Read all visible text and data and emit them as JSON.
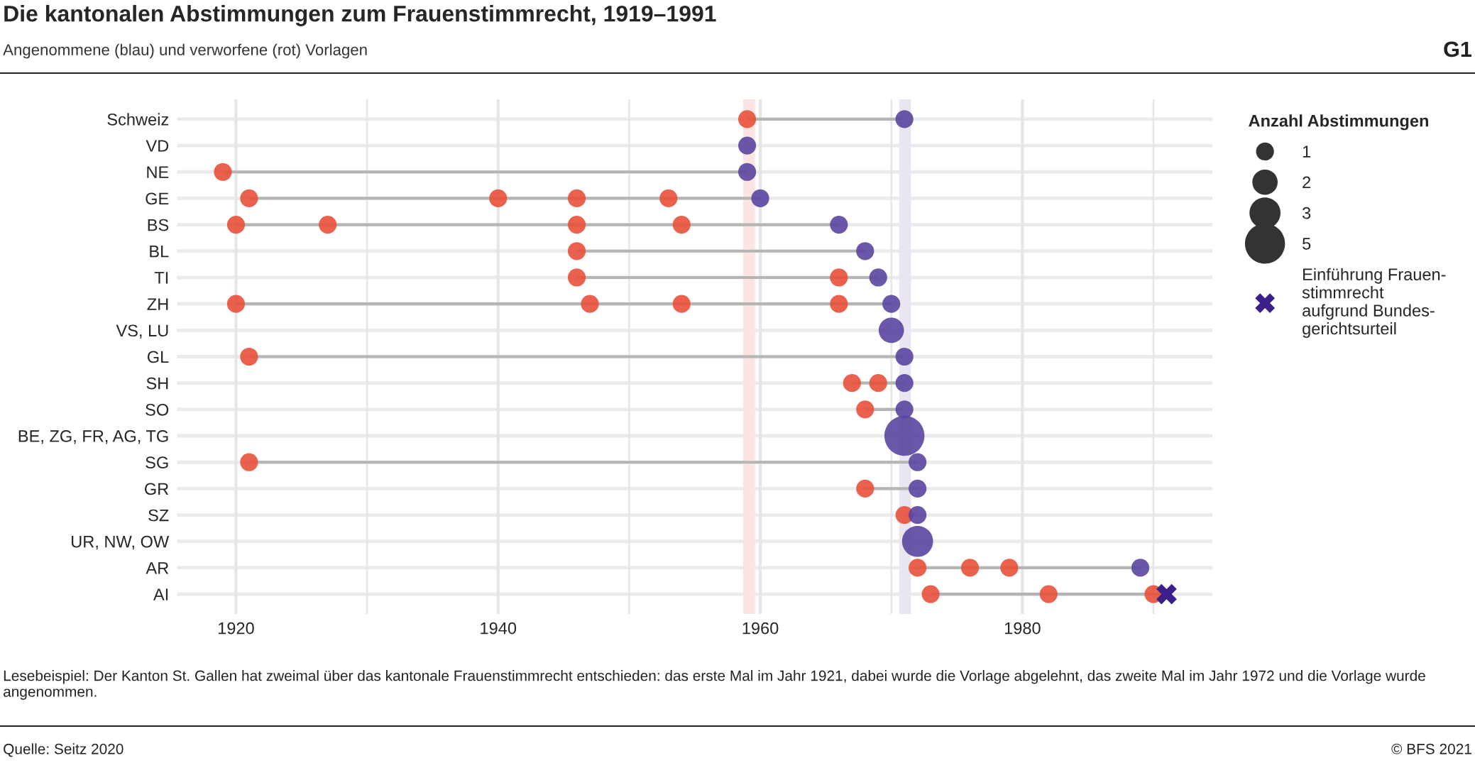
{
  "chart_data": {
    "type": "bubble",
    "orientation": "horizontal",
    "title": "Die kantonalen Abstimmungen zum Frauenstimmrecht, 1919–1991",
    "subtitle": "Angenommene (blau) und verworfene (rot) Vorlagen",
    "annotations": [
      "G1",
      "Lesebeispiel: Der Kanton St. Gallen hat zweimal über das kantonale Frauenstimmrecht entschieden: das erste Mal im Jahr 1921, dabei wurde die Vorlage abgelehnt, das zweite Mal im Jahr 1972 und die Vorlage wurde angenommen.",
      "Quelle: Seitz 2020",
      "© BFS 2021"
    ],
    "categories": [
      "Schweiz",
      "VD",
      "NE",
      "GE",
      "BS",
      "BL",
      "TI",
      "ZH",
      "VS, LU",
      "GL",
      "SH",
      "SO",
      "BE, ZG, FR, AG, TG",
      "SG",
      "GR",
      "SZ",
      "UR, NW, OW",
      "AR",
      "AI"
    ],
    "xlim": [
      1915.5,
      1994.5
    ],
    "xticks": [
      1920,
      {
        "value": 1930,
        "label": null
      },
      1940,
      {
        "value": 1950,
        "label": null
      },
      1960,
      {
        "value": 1970,
        "label": null
      },
      1980,
      {
        "value": 1990,
        "label": null
      }
    ],
    "grid": true,
    "legend": "right",
    "legend_title": "Anzahl Abstimmungen",
    "size_legend": [
      1,
      2,
      3,
      5
    ],
    "bands": [
      {
        "axis": "x",
        "from": 1958.7,
        "to": 1959.6,
        "color": "#fbe4e1"
      },
      {
        "axis": "x",
        "from": 1970.6,
        "to": 1971.5,
        "color": "#e9e6f2"
      }
    ],
    "series": [
      {
        "color": "#e8513b",
        "values": [
          1959,
          null,
          1919,
          1921,
          1920,
          1946,
          1946,
          1920,
          null,
          1921,
          1967,
          1968,
          null,
          1921,
          1968,
          1971,
          null,
          1972,
          1973
        ]
      },
      {
        "color": "#e8513b",
        "values": [
          null,
          null,
          null,
          1940,
          1927,
          null,
          1966,
          1947,
          null,
          null,
          1969,
          null,
          null,
          null,
          null,
          null,
          null,
          1976,
          1982
        ]
      },
      {
        "color": "#e8513b",
        "values": [
          null,
          null,
          null,
          1946,
          1946,
          null,
          null,
          1954,
          null,
          null,
          null,
          null,
          null,
          null,
          null,
          null,
          null,
          1979,
          1990
        ]
      },
      {
        "color": "#e8513b",
        "values": [
          null,
          null,
          null,
          1953,
          1954,
          null,
          null,
          1966,
          null,
          null,
          null,
          null,
          null,
          null,
          null,
          null,
          null,
          null,
          null
        ]
      },
      {
        "color": "#5b45a0",
        "values": [
          1971,
          1959,
          1959,
          1960,
          1966,
          1968,
          1969,
          1970,
          1970,
          1971,
          1971,
          1971,
          1971,
          1972,
          1972,
          1972,
          1972,
          1989,
          null
        ],
        "sizes": [
          1,
          1,
          1,
          1,
          1,
          1,
          1,
          1,
          2,
          1,
          1,
          1,
          5,
          1,
          1,
          1,
          3,
          1,
          null
        ]
      },
      {
        "type": "scatter",
        "name": "Einführung Frauen-\nstimmrecht\naufgrund Bundes-\ngerichtsurteil",
        "color": "#3b1f8a",
        "marker": "cross",
        "values": [
          null,
          null,
          null,
          null,
          null,
          null,
          null,
          null,
          null,
          null,
          null,
          null,
          null,
          null,
          null,
          null,
          null,
          null,
          1991
        ]
      }
    ]
  }
}
